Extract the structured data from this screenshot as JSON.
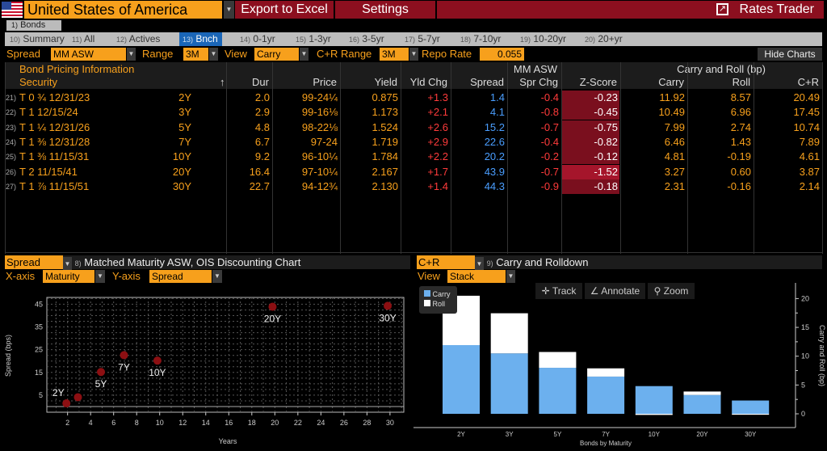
{
  "header": {
    "country": "United States of America",
    "export_label": "Export to Excel",
    "settings_label": "Settings",
    "app_title": "Rates Trader",
    "flag_icon": "us-flag-icon"
  },
  "top_tab": {
    "num": "1)",
    "label": "Bonds"
  },
  "tabs": [
    {
      "num": "10)",
      "label": "Summary"
    },
    {
      "num": "11)",
      "label": "All"
    },
    {
      "num": "12)",
      "label": "Actives"
    },
    {
      "num": "13)",
      "label": "Bnch",
      "active": true
    },
    {
      "num": "14)",
      "label": "0-1yr"
    },
    {
      "num": "15)",
      "label": "1-3yr"
    },
    {
      "num": "16)",
      "label": "3-5yr"
    },
    {
      "num": "17)",
      "label": "5-7yr"
    },
    {
      "num": "18)",
      "label": "7-10yr"
    },
    {
      "num": "19)",
      "label": "10-20yr"
    },
    {
      "num": "20)",
      "label": "20+yr"
    }
  ],
  "controls": {
    "spread_label": "Spread",
    "spread_value": "MM ASW",
    "range_label": "Range",
    "range_value": "3M",
    "view_label": "View",
    "view_value": "Carry",
    "cr_range_label": "C+R Range",
    "cr_range_value": "3M",
    "repo_label": "Repo Rate",
    "repo_value": "0.055",
    "hide_charts": "Hide Charts"
  },
  "table": {
    "groups": {
      "pricing": "Bond Pricing Information",
      "mmasw": "MM ASW",
      "carry": "Carry and Roll (bp)"
    },
    "columns": [
      "Security",
      "Dur",
      "Price",
      "Yield",
      "Yld Chg",
      "Spread",
      "Spr Chg",
      "Z-Score",
      "Carry",
      "Roll",
      "C+R"
    ],
    "sort_icon": "↑",
    "rows": [
      {
        "num": "21)",
        "security": "T 0 ¾  12/31/23",
        "tenor": "2Y",
        "dur": "2.0",
        "price": "99-24¼",
        "yield": "0.875",
        "yld_chg": "+1.3",
        "spread": "1.4",
        "spr_chg": "-0.4",
        "z": "-0.23",
        "carry": "11.92",
        "roll": "8.57",
        "cr": "20.49"
      },
      {
        "num": "22)",
        "security": "T 1 12/15/24",
        "tenor": "3Y",
        "dur": "2.9",
        "price": "99-16⅛",
        "yield": "1.173",
        "yld_chg": "+2.1",
        "spread": "4.1",
        "spr_chg": "-0.8",
        "z": "-0.45",
        "carry": "10.49",
        "roll": "6.96",
        "cr": "17.45"
      },
      {
        "num": "23)",
        "security": "T 1 ¼  12/31/26",
        "tenor": "5Y",
        "dur": "4.8",
        "price": "98-22⅛",
        "yield": "1.524",
        "yld_chg": "+2.6",
        "spread": "15.2",
        "spr_chg": "-0.7",
        "z": "-0.75",
        "carry": "7.99",
        "roll": "2.74",
        "cr": "10.74"
      },
      {
        "num": "24)",
        "security": "T 1 ⅜  12/31/28",
        "tenor": "7Y",
        "dur": "6.7",
        "price": "97-24",
        "yield": "1.719",
        "yld_chg": "+2.9",
        "spread": "22.6",
        "spr_chg": "-0.4",
        "z": "-0.82",
        "carry": "6.46",
        "roll": "1.43",
        "cr": "7.89"
      },
      {
        "num": "25)",
        "security": "T 1 ⅜  11/15/31",
        "tenor": "10Y",
        "dur": "9.2",
        "price": "96-10¼",
        "yield": "1.784",
        "yld_chg": "+2.2",
        "spread": "20.2",
        "spr_chg": "-0.2",
        "z": "-0.12",
        "carry": "4.81",
        "roll": "-0.19",
        "cr": "4.61"
      },
      {
        "num": "26)",
        "security": "T 2 11/15/41",
        "tenor": "20Y",
        "dur": "16.4",
        "price": "97-10¼",
        "yield": "2.167",
        "yld_chg": "+1.7",
        "spread": "43.9",
        "spr_chg": "-0.7",
        "z": "-1.52",
        "carry": "3.27",
        "roll": "0.60",
        "cr": "3.87"
      },
      {
        "num": "27)",
        "security": "T 1 ⅞  11/15/51",
        "tenor": "30Y",
        "dur": "22.7",
        "price": "94-12¾",
        "yield": "2.130",
        "yld_chg": "+1.4",
        "spread": "44.3",
        "spr_chg": "-0.9",
        "z": "-0.18",
        "carry": "2.31",
        "roll": "-0.16",
        "cr": "2.14"
      }
    ]
  },
  "left_panel": {
    "selector": "Spread",
    "num": "8)",
    "title": "Matched Maturity ASW, OIS Discounting Chart",
    "xaxis_label": "X-axis",
    "xaxis_value": "Maturity",
    "yaxis_label": "Y-axis",
    "yaxis_value": "Spread"
  },
  "right_panel": {
    "selector": "C+R",
    "num": "9)",
    "title": "Carry and Rolldown",
    "view_label": "View",
    "view_value": "Stack",
    "tools": [
      "Track",
      "Annotate",
      "Zoom"
    ]
  },
  "colors": {
    "orange": "#f7a01c",
    "red_button": "#8c0f1f",
    "positive_red": "#ff3b3b",
    "spread_blue": "#4a9eff",
    "carry_bar": "#6cb0ee",
    "roll_bar": "#ffffff",
    "point": "#8c0f12"
  },
  "chart_data": [
    {
      "type": "scatter",
      "xlabel": "Years",
      "ylabel": "Spread (bps)",
      "xlim": [
        0.2,
        31.2
      ],
      "ylim": [
        -2.5,
        48
      ],
      "xticks": [
        2,
        4,
        6,
        8,
        10,
        12,
        14,
        16,
        18,
        20,
        22,
        24,
        26,
        28,
        30
      ],
      "yticks": [
        5,
        15,
        25,
        35,
        45
      ],
      "grid": true,
      "points": [
        {
          "x": 1.9,
          "y": 1.4,
          "label": "2Y"
        },
        {
          "x": 2.9,
          "y": 4.1,
          "label": ""
        },
        {
          "x": 4.9,
          "y": 15.2,
          "label": "5Y"
        },
        {
          "x": 6.9,
          "y": 22.6,
          "label": "7Y"
        },
        {
          "x": 9.8,
          "y": 20.2,
          "label": "10Y"
        },
        {
          "x": 19.8,
          "y": 43.9,
          "label": "20Y"
        },
        {
          "x": 29.8,
          "y": 44.3,
          "label": "30Y"
        }
      ]
    },
    {
      "type": "bar",
      "stacked": true,
      "xlabel": "Bonds by Maturity",
      "ylabel": "Carry and Roll (bp)",
      "ylim": [
        -2.4,
        22
      ],
      "yticks": [
        0,
        5,
        10,
        15,
        20
      ],
      "legend": "top-left",
      "categories": [
        "2Y",
        "3Y",
        "5Y",
        "7Y",
        "10Y",
        "20Y",
        "30Y"
      ],
      "series": [
        {
          "name": "Carry",
          "values": [
            11.92,
            10.49,
            7.99,
            6.46,
            4.81,
            3.27,
            2.31
          ]
        },
        {
          "name": "Roll",
          "values": [
            8.57,
            6.96,
            2.74,
            1.43,
            -0.19,
            0.6,
            -0.16
          ]
        }
      ]
    }
  ]
}
